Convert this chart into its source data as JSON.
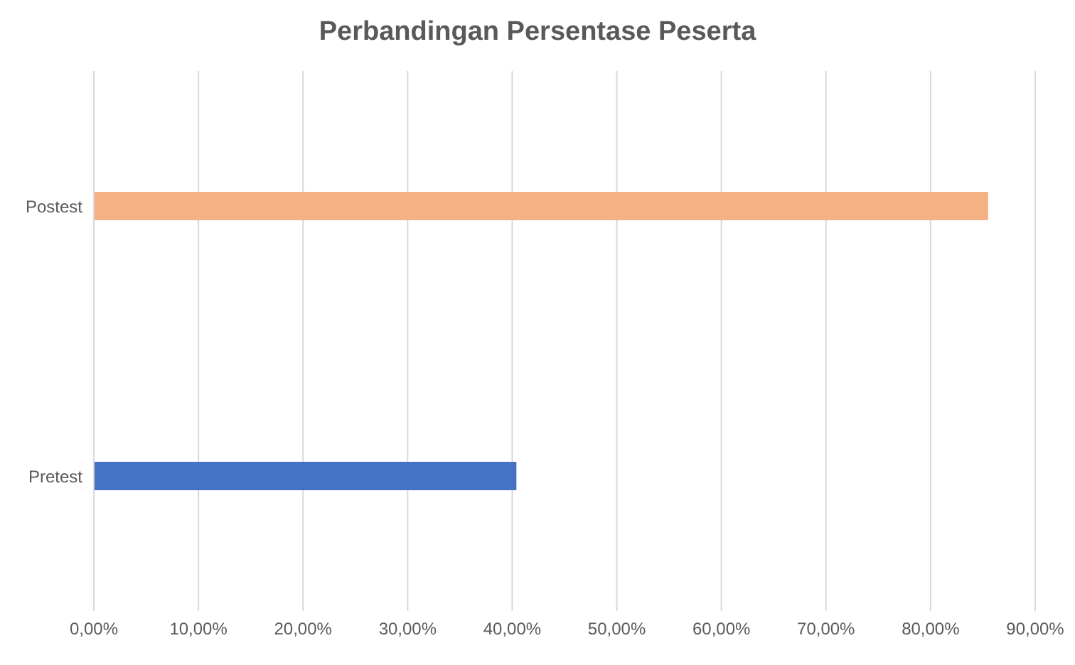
{
  "chart_data": {
    "type": "bar",
    "orientation": "horizontal",
    "title": "Perbandingan Persentase Peserta",
    "categories": [
      "Postest",
      "Pretest"
    ],
    "values": [
      85.5,
      40.4
    ],
    "colors": [
      "#f4b183",
      "#4472c4"
    ],
    "xlim": [
      0,
      90
    ],
    "xticks": [
      {
        "value": 0,
        "label": "0,00%"
      },
      {
        "value": 10,
        "label": "10,00%"
      },
      {
        "value": 20,
        "label": "20,00%"
      },
      {
        "value": 30,
        "label": "30,00%"
      },
      {
        "value": 40,
        "label": "40,00%"
      },
      {
        "value": 50,
        "label": "50,00%"
      },
      {
        "value": 60,
        "label": "60,00%"
      },
      {
        "value": 70,
        "label": "70,00%"
      },
      {
        "value": 80,
        "label": "80,00%"
      },
      {
        "value": 90,
        "label": "90,00%"
      }
    ],
    "grid": "x"
  }
}
